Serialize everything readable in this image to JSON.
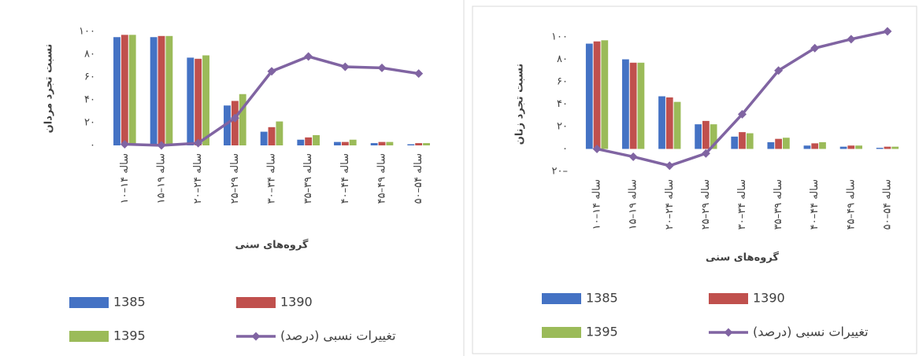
{
  "chart_data": [
    {
      "type": "bar_line",
      "ylabel": "نسبت تجرد مردان",
      "xlabel": "گروه‌های سنی",
      "categories": [
        "۱۰–۱۴ ساله",
        "۱۵–۱۹ ساله",
        "۲۰–۲۴ ساله",
        "۲۵–۲۹ ساله",
        "۳۰–۳۴ ساله",
        "۳۵–۳۹ ساله",
        "۴۰–۴۴ ساله",
        "۴۵–۴۹ ساله",
        "۵۰–۵۴ ساله"
      ],
      "ylim": [
        0,
        100
      ],
      "yticks": [
        {
          "value": 0,
          "label": "۰"
        },
        {
          "value": 20,
          "label": "۲۰"
        },
        {
          "value": 40,
          "label": "۴۰"
        },
        {
          "value": 60,
          "label": "۶۰"
        },
        {
          "value": 80,
          "label": "۸۰"
        },
        {
          "value": 100,
          "label": "۱۰۰"
        }
      ],
      "series": [
        {
          "name": "1385",
          "color": "#4472c4",
          "kind": "bar",
          "values": [
            95,
            95,
            77,
            35,
            12,
            5,
            3,
            2,
            1
          ]
        },
        {
          "name": "1390",
          "color": "#c0504d",
          "kind": "bar",
          "values": [
            97,
            96,
            76,
            39,
            16,
            7,
            3,
            3,
            2
          ]
        },
        {
          "name": "1395",
          "color": "#9bbb59",
          "kind": "bar",
          "values": [
            97,
            96,
            79,
            45,
            21,
            9,
            5,
            3,
            2
          ]
        },
        {
          "name": "تغییرات نسبی (درصد)",
          "color": "#8064a2",
          "kind": "line",
          "values": [
            1,
            0,
            2,
            24,
            65,
            78,
            69,
            68,
            63
          ]
        }
      ]
    },
    {
      "type": "bar_line",
      "ylabel": "نسبت تجرد زنان",
      "xlabel": "گروه‌های سنی",
      "categories": [
        "۱۰–۱۴ ساله",
        "۱۵–۱۹ ساله",
        "۲۰–۲۴ ساله",
        "۲۵–۲۹ ساله",
        "۳۰–۳۴ ساله",
        "۳۵–۳۹ ساله",
        "۴۰–۴۴ ساله",
        "۴۵–۴۹ ساله",
        "۵۰–۵۴ ساله"
      ],
      "ylim": [
        -20,
        100
      ],
      "yticks": [
        {
          "value": -20,
          "label": "۲۰–"
        },
        {
          "value": 0,
          "label": "۰"
        },
        {
          "value": 20,
          "label": "۲۰"
        },
        {
          "value": 40,
          "label": "۴۰"
        },
        {
          "value": 60,
          "label": "۶۰"
        },
        {
          "value": 80,
          "label": "۸۰"
        },
        {
          "value": 100,
          "label": "۱۰۰"
        }
      ],
      "series": [
        {
          "name": "1385",
          "color": "#4472c4",
          "kind": "bar",
          "values": [
            94,
            80,
            47,
            22,
            11,
            6,
            3,
            2,
            1
          ]
        },
        {
          "name": "1390",
          "color": "#c0504d",
          "kind": "bar",
          "values": [
            96,
            77,
            46,
            25,
            15,
            9,
            5,
            3,
            2
          ]
        },
        {
          "name": "1395",
          "color": "#9bbb59",
          "kind": "bar",
          "values": [
            97,
            77,
            42,
            22,
            14,
            10,
            6,
            3,
            2
          ]
        },
        {
          "name": "تغییرات نسبی (درصد)",
          "color": "#8064a2",
          "kind": "line",
          "values": [
            0,
            -7,
            -15,
            -4,
            31,
            70,
            90,
            98,
            105
          ]
        }
      ]
    }
  ]
}
